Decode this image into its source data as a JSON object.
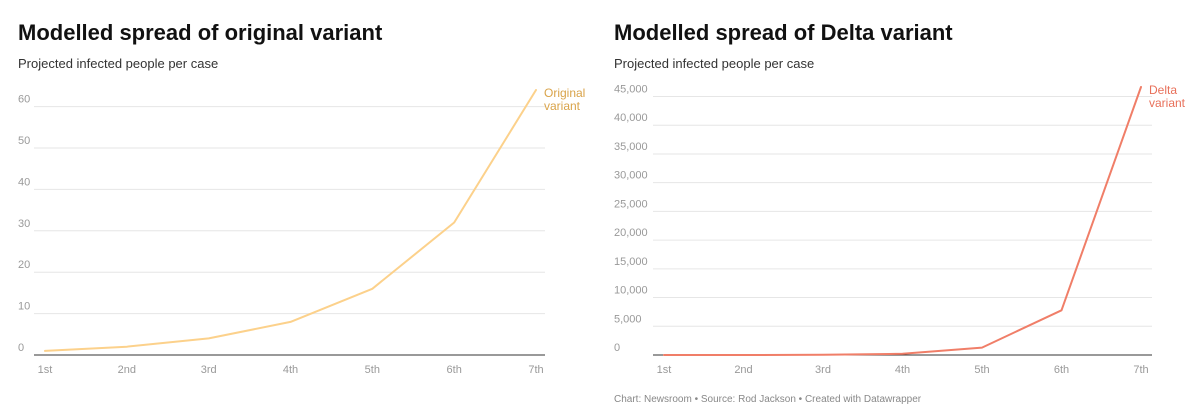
{
  "chart_data": [
    {
      "type": "line",
      "title": "Modelled spread of original variant",
      "subtitle": "Projected infected people per case",
      "categories": [
        "1st",
        "2nd",
        "3rd",
        "4th",
        "5th",
        "6th",
        "7th"
      ],
      "series": [
        {
          "name_lines": [
            "Original",
            "variant"
          ],
          "color": "#fcd18b",
          "label_color": "#d9a349",
          "values": [
            1,
            2,
            4,
            8,
            16,
            32,
            64
          ]
        }
      ],
      "y_ticks": [
        0,
        10,
        20,
        30,
        40,
        50,
        60
      ],
      "y_tick_labels": [
        "0",
        "10",
        "20",
        "30",
        "40",
        "50",
        "60"
      ],
      "ylim": [
        0,
        64
      ],
      "grid": true,
      "legend": "direct-label"
    },
    {
      "type": "line",
      "title": "Modelled spread of Delta variant",
      "subtitle": "Projected infected people per case",
      "categories": [
        "1st",
        "2nd",
        "3rd",
        "4th",
        "5th",
        "6th",
        "7th"
      ],
      "series": [
        {
          "name_lines": [
            "Delta",
            "variant"
          ],
          "color": "#f07e68",
          "label_color": "#e8705a",
          "values": [
            1,
            6,
            36,
            216,
            1296,
            7776,
            46656
          ]
        }
      ],
      "y_ticks": [
        0,
        5000,
        10000,
        15000,
        20000,
        25000,
        30000,
        35000,
        40000,
        45000
      ],
      "y_tick_labels": [
        "0",
        "5,000",
        "10,000",
        "15,000",
        "20,000",
        "25,000",
        "30,000",
        "35,000",
        "40,000",
        "45,000"
      ],
      "ylim": [
        0,
        46656
      ],
      "grid": true,
      "legend": "direct-label"
    }
  ],
  "footer": "Chart: Newsroom • Source: Rod Jackson • Created with Datawrapper"
}
